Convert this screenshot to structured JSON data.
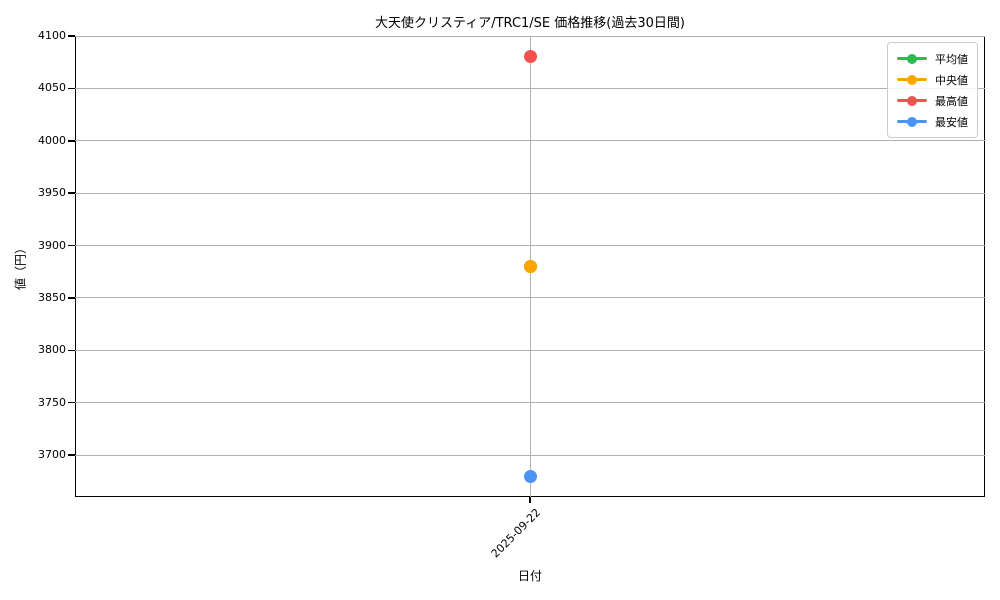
{
  "title": "大天使クリスティア/TRC1/SE 価格推移(過去30日間)",
  "axes": {
    "x_label": "日付",
    "y_label": "値（円）",
    "x_ticks": [
      "2025-09-22"
    ],
    "y_ticks": [
      4100,
      4050,
      4000,
      3950,
      3900,
      3850,
      3800,
      3750,
      3700
    ]
  },
  "colors": {
    "grid": "#b0b0b0",
    "spine": "#000000",
    "background": "#ffffff",
    "mean": "#2dba4e",
    "median": "#ffa502",
    "max": "#f4514e",
    "min": "#4b94f5"
  },
  "chart_data": {
    "type": "line",
    "title": "大天使クリスティア/TRC1/SE 価格推移(過去30日間)",
    "xlabel": "日付",
    "ylabel": "値（円）",
    "x": [
      "2025-09-22"
    ],
    "ylim": [
      3660,
      4100
    ],
    "grid": true,
    "legend_position": "upper right",
    "series": [
      {
        "key": "mean",
        "name": "平均値",
        "color": "#2dba4e",
        "values": [
          3880
        ],
        "visible": false
      },
      {
        "key": "median",
        "name": "中央値",
        "color": "#ffa502",
        "values": [
          3880
        ],
        "visible": true
      },
      {
        "key": "max",
        "name": "最高値",
        "color": "#f4514e",
        "values": [
          4080
        ],
        "visible": true
      },
      {
        "key": "min",
        "name": "最安値",
        "color": "#4b94f5",
        "values": [
          3680
        ],
        "visible": true
      }
    ]
  }
}
